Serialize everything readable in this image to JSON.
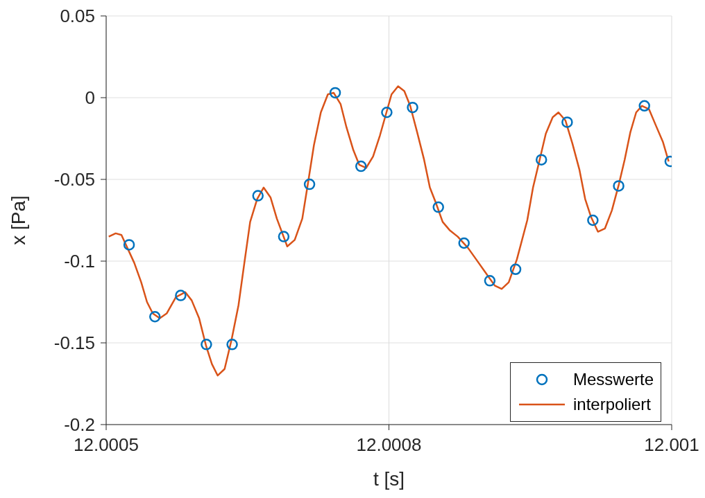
{
  "chart_data": {
    "type": "line",
    "xlabel": "t [s]",
    "ylabel": "x [Pa]",
    "xlim": [
      12.0005,
      12.001
    ],
    "xticks": [
      {
        "value": 12.0005,
        "label": "12.0005"
      },
      {
        "value": 12.00075,
        "label": "12.0008"
      },
      {
        "value": 12.001,
        "label": "12.001"
      }
    ],
    "ylim": [
      -0.2,
      0.05
    ],
    "yticks": [
      0.05,
      0,
      -0.05,
      -0.1,
      -0.15,
      -0.2
    ],
    "grid": true,
    "legend": "bottom right",
    "series": [
      {
        "name": "Messwerte",
        "type": "scatter",
        "marker": "circle",
        "color": "#0072bd",
        "x": [
          12.0005203,
          12.0005431,
          12.0005659,
          12.0005886,
          12.0006114,
          12.0006342,
          12.000657,
          12.0006798,
          12.0007025,
          12.0007253,
          12.0007481,
          12.0007709,
          12.0007937,
          12.0008164,
          12.0008392,
          12.000862,
          12.0008848,
          12.0009076,
          12.0009303,
          12.0009531,
          12.0009759,
          12.0009987
        ],
        "values": [
          -0.09,
          -0.134,
          -0.121,
          -0.151,
          -0.151,
          -0.06,
          -0.085,
          -0.053,
          0.003,
          -0.042,
          -0.009,
          -0.006,
          -0.067,
          -0.089,
          -0.112,
          -0.105,
          -0.038,
          -0.015,
          -0.075,
          -0.054,
          -0.005,
          -0.039
        ]
      },
      {
        "name": "interpoliert",
        "type": "line",
        "line_style": "solid",
        "color": "#d95319",
        "x": [
          12.0005023,
          12.0005084,
          12.0005135,
          12.0005248,
          12.000531,
          12.0005361,
          12.0005412,
          12.0005474,
          12.0005535,
          12.0005617,
          12.0005699,
          12.0005756,
          12.0005822,
          12.0005884,
          12.0005935,
          12.0005986,
          12.0006047,
          12.0006109,
          12.000617,
          12.0006222,
          12.0006273,
          12.0006335,
          12.0006392,
          12.0006453,
          12.0006509,
          12.0006601,
          12.0006667,
          12.0006734,
          12.0006785,
          12.0006837,
          12.0006898,
          12.000696,
          12.0007011,
          12.0007073,
          12.0007124,
          12.0007185,
          12.0007237,
          12.0007298,
          12.000736,
          12.0007421,
          12.0007523,
          12.0007581,
          12.0007636,
          12.0007688,
          12.0007749,
          12.0007811,
          12.0007862,
          12.0007913,
          12.0007975,
          12.0008036,
          12.0008108,
          12.00082,
          12.0008272,
          12.0008344,
          12.0008436,
          12.0008497,
          12.0008559,
          12.0008631,
          12.0008723,
          12.0008774,
          12.0008836,
          12.0008887,
          12.0008948,
          12.0008999,
          12.0009061,
          12.0009122,
          12.0009184,
          12.0009235,
          12.0009287,
          12.0009348,
          12.000941,
          12.0009471,
          12.0009533,
          12.0009584,
          12.0009635,
          12.0009686,
          12.0009737,
          12.0009799,
          12.000986,
          12.0009922,
          12.0009973
        ],
        "values": [
          -0.085,
          -0.083,
          -0.084,
          -0.101,
          -0.113,
          -0.125,
          -0.132,
          -0.135,
          -0.132,
          -0.122,
          -0.119,
          -0.124,
          -0.135,
          -0.152,
          -0.163,
          -0.17,
          -0.166,
          -0.148,
          -0.127,
          -0.101,
          -0.076,
          -0.062,
          -0.055,
          -0.061,
          -0.074,
          -0.091,
          -0.087,
          -0.074,
          -0.052,
          -0.029,
          -0.009,
          0.002,
          0.003,
          -0.004,
          -0.018,
          -0.032,
          -0.041,
          -0.043,
          -0.036,
          -0.023,
          0.002,
          0.007,
          0.004,
          -0.005,
          -0.021,
          -0.038,
          -0.055,
          -0.064,
          -0.076,
          -0.081,
          -0.085,
          -0.092,
          -0.099,
          -0.106,
          -0.115,
          -0.117,
          -0.113,
          -0.099,
          -0.075,
          -0.055,
          -0.037,
          -0.022,
          -0.012,
          -0.009,
          -0.014,
          -0.028,
          -0.044,
          -0.062,
          -0.073,
          -0.082,
          -0.08,
          -0.069,
          -0.053,
          -0.038,
          -0.021,
          -0.009,
          -0.005,
          -0.007,
          -0.017,
          -0.027,
          -0.039
        ]
      }
    ]
  }
}
